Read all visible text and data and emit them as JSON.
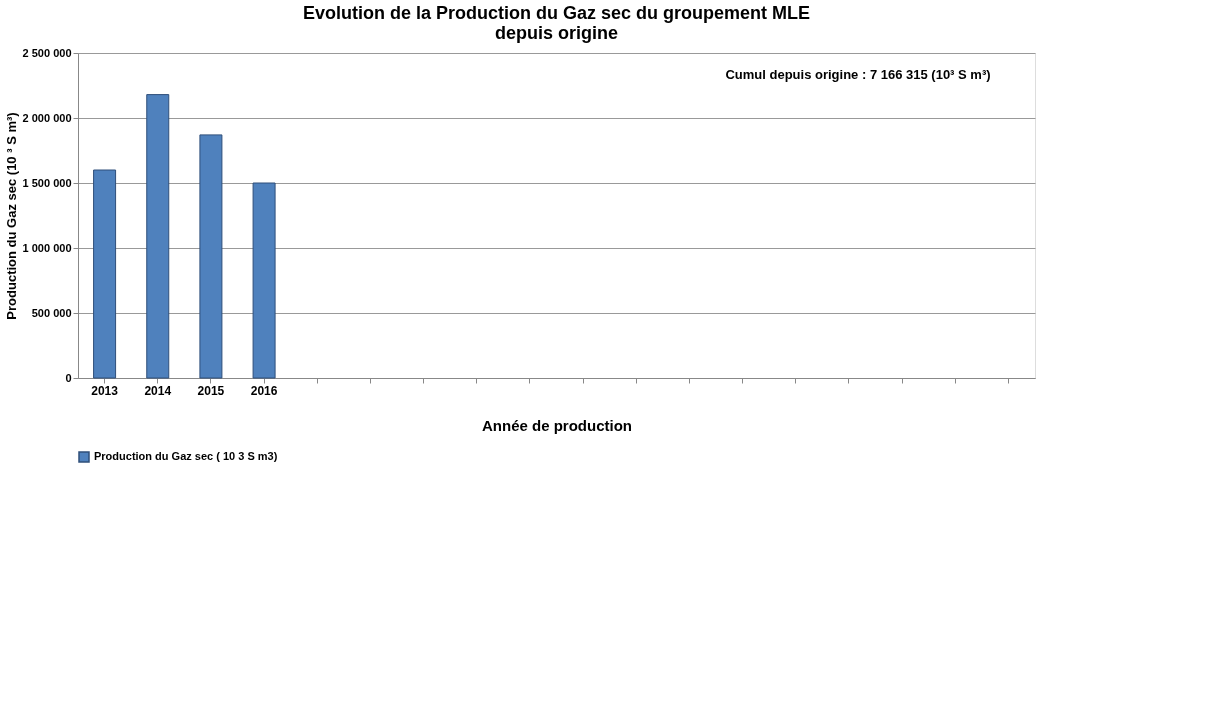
{
  "chart_data": {
    "type": "bar",
    "title": [
      "Evolution de la Production du Gaz sec du groupement  MLE",
      "depuis origine"
    ],
    "xlabel": "Année de production",
    "ylabel": "Production du Gaz sec (10 ³ S m³)",
    "annotations": [
      "Cumul depuis origine :  7 166 315    (10³ S m³)"
    ],
    "categories": [
      "2013",
      "2014",
      "2015",
      "2016",
      null,
      null,
      null,
      null,
      null,
      null,
      null,
      null,
      null,
      null,
      null,
      null,
      null,
      null
    ],
    "series": [
      {
        "name": "Production du Gaz sec   ( 10 3 S m3)",
        "color": "#4f81bd",
        "values": [
          1600000,
          2180000,
          1870000,
          1500000,
          null,
          null,
          null,
          null,
          null,
          null,
          null,
          null,
          null,
          null,
          null,
          null,
          null,
          null
        ]
      }
    ],
    "ylim": [
      0,
      2500000
    ],
    "yticks": [
      {
        "value": 0,
        "label": "0"
      },
      {
        "value": 500000,
        "label": "500 000"
      },
      {
        "value": 1000000,
        "label": "1 000 000"
      },
      {
        "value": 1500000,
        "label": "1 500 000"
      },
      {
        "value": 2000000,
        "label": "2 000 000"
      },
      {
        "value": 2500000,
        "label": "2 500 000"
      }
    ],
    "grid": "y",
    "legend": "bottom"
  }
}
